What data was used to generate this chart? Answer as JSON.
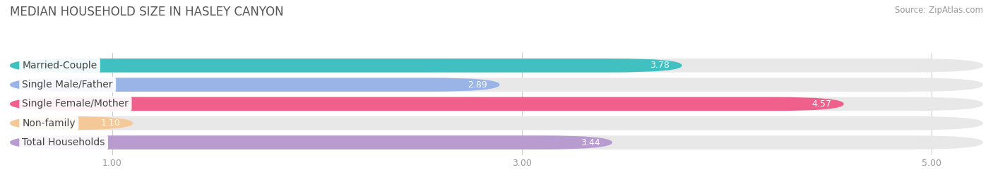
{
  "title": "MEDIAN HOUSEHOLD SIZE IN HASLEY CANYON",
  "source": "Source: ZipAtlas.com",
  "categories": [
    "Married-Couple",
    "Single Male/Father",
    "Single Female/Mother",
    "Non-family",
    "Total Households"
  ],
  "values": [
    3.78,
    2.89,
    4.57,
    1.1,
    3.44
  ],
  "bar_colors": [
    "#40c0c0",
    "#9ab4e8",
    "#f0608c",
    "#f5c898",
    "#b89cd0"
  ],
  "bar_bg_color": "#e8e8e8",
  "xlim_min": 0.5,
  "xlim_max": 5.25,
  "xticks": [
    1.0,
    3.0,
    5.0
  ],
  "bar_height": 0.72,
  "label_fontsize": 10,
  "value_fontsize": 9,
  "title_fontsize": 12,
  "source_fontsize": 8.5,
  "background_color": "#ffffff",
  "grid_color": "#cccccc",
  "label_bg_color": "#ffffff",
  "value_color": "#ffffff",
  "tick_color": "#999999"
}
